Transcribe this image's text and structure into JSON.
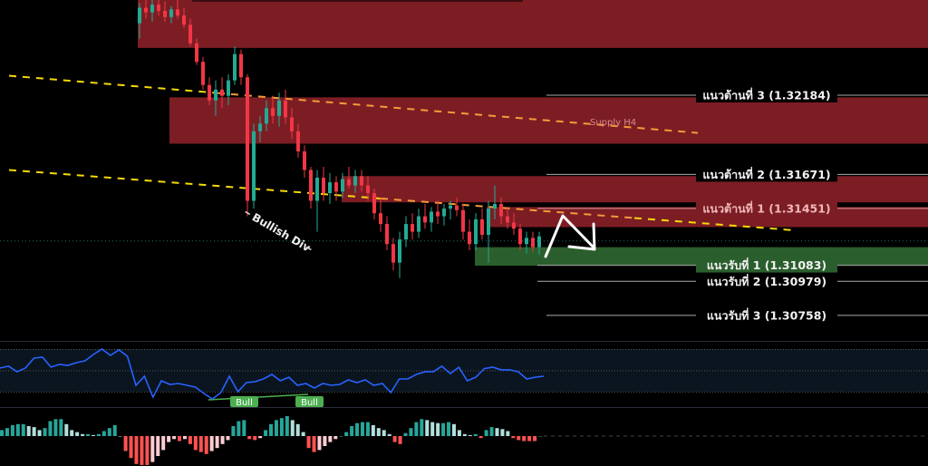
{
  "colors": {
    "background": "#000000",
    "supply_zone": "#7c1d24",
    "demand_zone": "#2b5e2d",
    "up_candle": "#22ab94",
    "down_candle": "#f23645",
    "trend_yellow": "#f5d90a",
    "trend_orange": "#f59a3b",
    "rsi_line": "#2962ff",
    "rsi_band": "#0a1520",
    "bull_label": "#4caf50",
    "hist_up_strong": "#26a69a",
    "hist_up_weak": "#b2dfdb",
    "hist_down_strong": "#ff5252",
    "hist_down_weak": "#ffcdd2"
  },
  "chart_data": {
    "type": "candlestick",
    "candles": [
      [
        1.3265,
        1.3278,
        1.3255,
        1.3275
      ],
      [
        1.3275,
        1.328,
        1.3268,
        1.3272
      ],
      [
        1.3272,
        1.328,
        1.3266,
        1.3277
      ],
      [
        1.3277,
        1.328,
        1.327,
        1.3273
      ],
      [
        1.3273,
        1.3279,
        1.3266,
        1.3269
      ],
      [
        1.3269,
        1.3276,
        1.3265,
        1.3274
      ],
      [
        1.3274,
        1.328,
        1.3268,
        1.327
      ],
      [
        1.327,
        1.3275,
        1.3262,
        1.3264
      ],
      [
        1.3264,
        1.3268,
        1.325,
        1.3252
      ],
      [
        1.3252,
        1.3255,
        1.3238,
        1.324
      ],
      [
        1.324,
        1.3243,
        1.3222,
        1.3225
      ],
      [
        1.3225,
        1.323,
        1.3212,
        1.3215
      ],
      [
        1.3215,
        1.3228,
        1.3205,
        1.3222
      ],
      [
        1.3222,
        1.323,
        1.321,
        1.3218
      ],
      [
        1.3218,
        1.3232,
        1.3212,
        1.3228
      ],
      [
        1.3228,
        1.325,
        1.3225,
        1.3245
      ],
      [
        1.3245,
        1.3248,
        1.3225,
        1.323
      ],
      [
        1.323,
        1.3232,
        1.314,
        1.315
      ],
      [
        1.315,
        1.32,
        1.3145,
        1.3195
      ],
      [
        1.3195,
        1.3205,
        1.3188,
        1.32
      ],
      [
        1.32,
        1.3215,
        1.3195,
        1.321
      ],
      [
        1.321,
        1.3218,
        1.32,
        1.3205
      ],
      [
        1.3205,
        1.322,
        1.3198,
        1.3215
      ],
      [
        1.3215,
        1.3222,
        1.32,
        1.3204
      ],
      [
        1.3204,
        1.321,
        1.319,
        1.3195
      ],
      [
        1.3195,
        1.32,
        1.3178,
        1.3182
      ],
      [
        1.3182,
        1.3186,
        1.3165,
        1.317
      ],
      [
        1.317,
        1.3172,
        1.3145,
        1.315
      ],
      [
        1.315,
        1.317,
        1.313,
        1.3165
      ],
      [
        1.3165,
        1.3172,
        1.315,
        1.3155
      ],
      [
        1.3155,
        1.3168,
        1.3148,
        1.3162
      ],
      [
        1.3162,
        1.3166,
        1.315,
        1.3156
      ],
      [
        1.3156,
        1.3168,
        1.3152,
        1.3164
      ],
      [
        1.3164,
        1.3172,
        1.3158,
        1.316
      ],
      [
        1.316,
        1.317,
        1.3155,
        1.3166
      ],
      [
        1.3166,
        1.317,
        1.3156,
        1.316
      ],
      [
        1.316,
        1.3166,
        1.315,
        1.3155
      ],
      [
        1.3155,
        1.3158,
        1.3138,
        1.3142
      ],
      [
        1.3142,
        1.3152,
        1.313,
        1.3135
      ],
      [
        1.3135,
        1.314,
        1.3118,
        1.3122
      ],
      [
        1.3122,
        1.3126,
        1.3105,
        1.311
      ],
      [
        1.311,
        1.313,
        1.31,
        1.3125
      ],
      [
        1.3125,
        1.314,
        1.312,
        1.3135
      ],
      [
        1.3135,
        1.3142,
        1.3125,
        1.313
      ],
      [
        1.313,
        1.3145,
        1.3126,
        1.314
      ],
      [
        1.314,
        1.3148,
        1.3132,
        1.3136
      ],
      [
        1.3136,
        1.3146,
        1.313,
        1.3143
      ],
      [
        1.3143,
        1.315,
        1.3135,
        1.314
      ],
      [
        1.314,
        1.3148,
        1.3134,
        1.3145
      ],
      [
        1.3145,
        1.315,
        1.3138,
        1.3147
      ],
      [
        1.3147,
        1.3152,
        1.314,
        1.3144
      ],
      [
        1.3144,
        1.3148,
        1.3125,
        1.313
      ],
      [
        1.313,
        1.3138,
        1.3118,
        1.3122
      ],
      [
        1.3122,
        1.3142,
        1.3118,
        1.3138
      ],
      [
        1.3138,
        1.3145,
        1.3125,
        1.3128
      ],
      [
        1.3128,
        1.315,
        1.311,
        1.3145
      ],
      [
        1.3145,
        1.316,
        1.3138,
        1.3148
      ],
      [
        1.3148,
        1.3152,
        1.3135,
        1.314
      ],
      [
        1.314,
        1.3146,
        1.3132,
        1.3136
      ],
      [
        1.3136,
        1.3142,
        1.3128,
        1.3132
      ],
      [
        1.3132,
        1.3135,
        1.3118,
        1.3122
      ],
      [
        1.3122,
        1.313,
        1.3116,
        1.3126
      ],
      [
        1.3126,
        1.313,
        1.3117,
        1.312
      ],
      [
        1.312,
        1.313,
        1.3115,
        1.3127
      ]
    ],
    "zones": [
      {
        "kind": "supply",
        "top": 1.3282,
        "bottom": 1.3249
      },
      {
        "kind": "supply",
        "label": "Supply H4",
        "top": 1.3217,
        "bottom": 1.3187
      },
      {
        "kind": "supply",
        "top": 1.3166,
        "bottom": 1.3149
      },
      {
        "kind": "supply",
        "top": 1.3146,
        "bottom": 1.3133
      },
      {
        "kind": "demand",
        "top": 1.312,
        "bottom": 1.3108
      }
    ],
    "levels": [
      {
        "label": "แนวต้านที่ 3 (1.32184)",
        "price": 1.32184
      },
      {
        "label": "แนวต้านที่ 2 (1.31671)",
        "price": 1.31671
      },
      {
        "label": "แนวต้านที่ 1 (1.31451)",
        "price": 1.31451
      },
      {
        "label": "แนวรับที่ 1 (1.31083)",
        "price": 1.31083
      },
      {
        "label": "แนวรับที่ 2 (1.30979)",
        "price": 1.30979
      },
      {
        "label": "แนวรับที่ 3 (1.30758)",
        "price": 1.30758
      }
    ],
    "current_price": 1.3124,
    "trendlines": [
      {
        "start_price": 1.3231,
        "end_price": 1.3194
      },
      {
        "start_price": 1.317,
        "end_price": 1.3131
      }
    ],
    "annotation": "Bullish Div",
    "rsi": {
      "levels": [
        70,
        50,
        30
      ],
      "values": [
        52.6,
        54.3,
        49.1,
        52.6,
        61.9,
        62.8,
        53.4,
        56,
        55.1,
        57.7,
        59.4,
        65.3,
        70.4,
        64.5,
        69.6,
        63.6,
        36.4,
        44.9,
        25.3,
        40.6,
        37.2,
        38.1,
        36.4,
        34.7,
        28.7,
        23.6,
        29.6,
        44.9,
        30.4,
        38.9,
        39.8,
        42.3,
        46.6,
        40.6,
        44,
        36.4,
        38.1,
        33.8,
        38.1,
        36.4,
        37.2,
        41.5,
        38.9,
        41.5,
        36.4,
        38.1,
        29.6,
        42.3,
        42.3,
        46.6,
        49.1,
        49.1,
        54.3,
        47.4,
        53.4,
        40.6,
        44,
        52,
        53.4,
        50.9,
        50.9,
        49.1,
        42.3,
        44,
        44.9
      ],
      "signals": [
        "Bull",
        "Bull"
      ]
    },
    "histogram": [
      6,
      8,
      11,
      12,
      12,
      10,
      9,
      6,
      8,
      15,
      17,
      17,
      12,
      6,
      4,
      2,
      2,
      1,
      2,
      5,
      8,
      11,
      0,
      -15,
      -22,
      -28,
      -29,
      -29,
      -26,
      -20,
      -14,
      -6,
      -3,
      -5,
      -3,
      -8,
      -14,
      -16,
      -18,
      -15,
      -12,
      -8,
      -4,
      10,
      15,
      16,
      -3,
      -4,
      -2,
      6,
      12,
      16,
      18,
      20,
      16,
      12,
      4,
      -12,
      -16,
      -14,
      -10,
      -6,
      -3,
      0,
      4,
      10,
      13,
      14,
      14,
      11,
      8,
      6,
      2,
      -6,
      -8,
      3,
      8,
      14,
      17,
      16,
      14,
      13,
      13,
      14,
      12,
      6,
      2,
      1,
      2,
      -2,
      6,
      9,
      8,
      7,
      5,
      -2,
      -4,
      -5,
      -5,
      -5,
      0
    ]
  }
}
